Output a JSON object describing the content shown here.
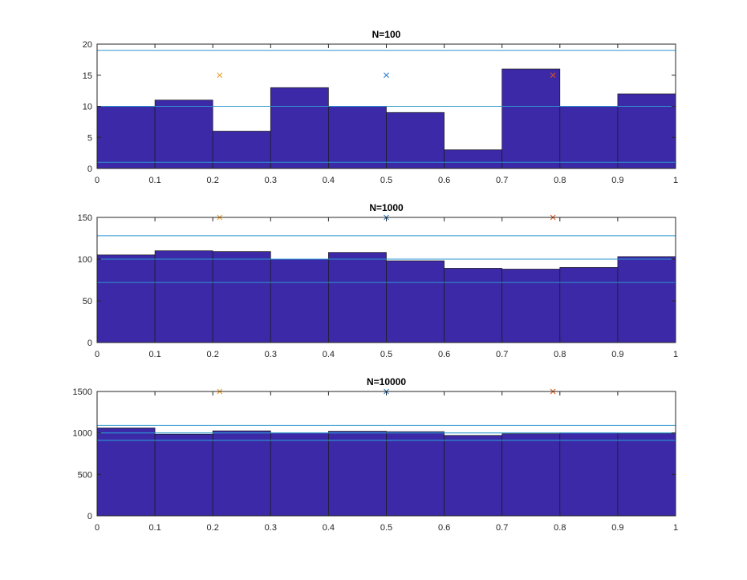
{
  "colors": {
    "bar_fill": "#3c29a8",
    "reference_line": "#2d97cf",
    "marker_blue": "#1f74c8",
    "marker_orange": "#eb9b22",
    "marker_red": "#d9541b",
    "axis": "#262626"
  },
  "chart_data": [
    {
      "type": "bar",
      "title": "N=100",
      "xlabel": "",
      "ylabel": "",
      "bin_edges": [
        0,
        0.1,
        0.2,
        0.3,
        0.4,
        0.5,
        0.6,
        0.7,
        0.8,
        0.9,
        1
      ],
      "values": [
        10,
        11,
        6,
        13,
        10,
        9,
        3,
        16,
        10,
        12
      ],
      "xlim": [
        0,
        1
      ],
      "ylim": [
        0,
        20
      ],
      "xticks": [
        0,
        0.1,
        0.2,
        0.3,
        0.4,
        0.5,
        0.6,
        0.7,
        0.8,
        0.9,
        1
      ],
      "xtick_labels": [
        "0",
        "0.1",
        "0.2",
        "0.3",
        "0.4",
        "0.5",
        "0.6",
        "0.7",
        "0.8",
        "0.9",
        "1"
      ],
      "yticks": [
        0,
        5,
        10,
        15,
        20
      ],
      "ytick_labels": [
        "0",
        "5",
        "10",
        "15",
        "20"
      ],
      "reference_lines": [
        1,
        10,
        19
      ],
      "markers": [
        {
          "x": 0.212,
          "y": 15,
          "color": "marker_orange"
        },
        {
          "x": 0.5,
          "y": 15,
          "color": "marker_blue"
        },
        {
          "x": 0.788,
          "y": 15,
          "color": "marker_red"
        }
      ],
      "grid": false,
      "legend": "none"
    },
    {
      "type": "bar",
      "title": "N=1000",
      "xlabel": "",
      "ylabel": "",
      "bin_edges": [
        0,
        0.1,
        0.2,
        0.3,
        0.4,
        0.5,
        0.6,
        0.7,
        0.8,
        0.9,
        1
      ],
      "values": [
        105,
        110,
        109,
        100,
        108,
        98,
        89,
        88,
        90,
        103
      ],
      "xlim": [
        0,
        1
      ],
      "ylim": [
        0,
        150
      ],
      "xticks": [
        0,
        0.1,
        0.2,
        0.3,
        0.4,
        0.5,
        0.6,
        0.7,
        0.8,
        0.9,
        1
      ],
      "xtick_labels": [
        "0",
        "0.1",
        "0.2",
        "0.3",
        "0.4",
        "0.5",
        "0.6",
        "0.7",
        "0.8",
        "0.9",
        "1"
      ],
      "yticks": [
        0,
        50,
        100,
        150
      ],
      "ytick_labels": [
        "0",
        "50",
        "100",
        "150"
      ],
      "reference_lines": [
        72,
        100,
        128
      ],
      "markers": [
        {
          "x": 0.212,
          "y": 150,
          "color": "marker_orange"
        },
        {
          "x": 0.5,
          "y": 150,
          "color": "marker_blue"
        },
        {
          "x": 0.788,
          "y": 150,
          "color": "marker_red"
        }
      ],
      "grid": false,
      "legend": "none"
    },
    {
      "type": "bar",
      "title": "N=10000",
      "xlabel": "",
      "ylabel": "",
      "bin_edges": [
        0,
        0.1,
        0.2,
        0.3,
        0.4,
        0.5,
        0.6,
        0.7,
        0.8,
        0.9,
        1
      ],
      "values": [
        1060,
        985,
        1025,
        1000,
        1020,
        1015,
        970,
        990,
        1000,
        995
      ],
      "xlim": [
        0,
        1
      ],
      "ylim": [
        0,
        1500
      ],
      "xticks": [
        0,
        0.1,
        0.2,
        0.3,
        0.4,
        0.5,
        0.6,
        0.7,
        0.8,
        0.9,
        1
      ],
      "xtick_labels": [
        "0",
        "0.1",
        "0.2",
        "0.3",
        "0.4",
        "0.5",
        "0.6",
        "0.7",
        "0.8",
        "0.9",
        "1"
      ],
      "yticks": [
        0,
        500,
        1000,
        1500
      ],
      "ytick_labels": [
        "0",
        "500",
        "1000",
        "1500"
      ],
      "reference_lines": [
        910,
        1000,
        1090
      ],
      "markers": [
        {
          "x": 0.212,
          "y": 1500,
          "color": "marker_orange"
        },
        {
          "x": 0.5,
          "y": 1500,
          "color": "marker_blue"
        },
        {
          "x": 0.788,
          "y": 1500,
          "color": "marker_red"
        }
      ],
      "grid": false,
      "legend": "none"
    }
  ]
}
